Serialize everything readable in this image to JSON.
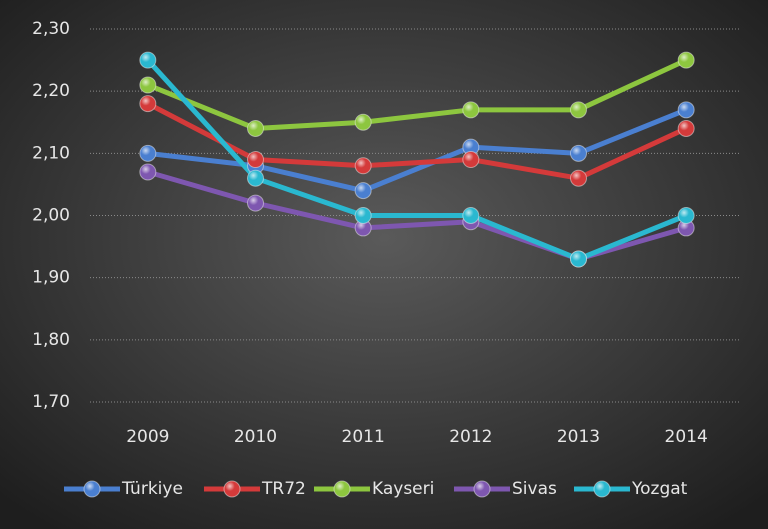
{
  "chart_data": {
    "type": "line",
    "categories": [
      "2009",
      "2010",
      "2011",
      "2012",
      "2013",
      "2014"
    ],
    "series": [
      {
        "name": "Türkiye",
        "color": "#4a7fd0",
        "values": [
          2.1,
          2.08,
          2.04,
          2.11,
          2.1,
          2.17
        ]
      },
      {
        "name": "TR72",
        "color": "#d43a3a",
        "values": [
          2.18,
          2.09,
          2.08,
          2.09,
          2.06,
          2.14
        ]
      },
      {
        "name": "Kayseri",
        "color": "#8dc63f",
        "values": [
          2.21,
          2.14,
          2.15,
          2.17,
          2.17,
          2.25
        ]
      },
      {
        "name": "Sivas",
        "color": "#7e57b0",
        "values": [
          2.07,
          2.02,
          1.98,
          1.99,
          1.93,
          1.98
        ]
      },
      {
        "name": "Yozgat",
        "color": "#2ab8d0",
        "values": [
          2.25,
          2.06,
          2.0,
          2.0,
          1.93,
          2.0
        ]
      }
    ],
    "ylim": [
      1.7,
      2.3
    ],
    "yticks": [
      {
        "value": 1.7,
        "label": "1,70"
      },
      {
        "value": 1.8,
        "label": "1,80"
      },
      {
        "value": 1.9,
        "label": "1,90"
      },
      {
        "value": 2.0,
        "label": "2,00"
      },
      {
        "value": 2.1,
        "label": "2,10"
      },
      {
        "value": 2.2,
        "label": "2,20"
      },
      {
        "value": 2.3,
        "label": "2,30"
      }
    ],
    "grid": true,
    "legend": "bottom"
  }
}
